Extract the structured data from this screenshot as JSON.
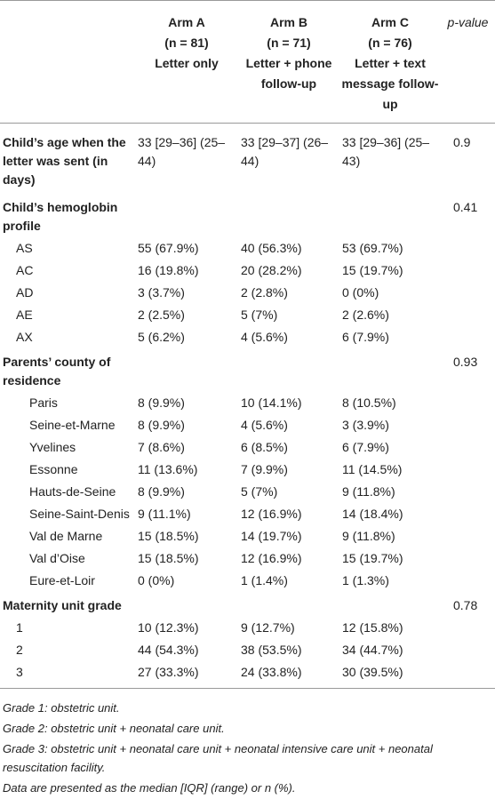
{
  "table": {
    "header": {
      "arms": [
        {
          "name": "Arm A",
          "n": "(n = 81)",
          "desc": "Letter only"
        },
        {
          "name": "Arm B",
          "n": "(n = 71)",
          "desc": "Letter + phone follow-up"
        },
        {
          "name": "Arm C",
          "n": "(n = 76)",
          "desc": "Letter + text message follow-up"
        }
      ],
      "p": "p-value"
    },
    "sections": [
      {
        "label": "Child’s age when the letter was sent (in days)",
        "cells": [
          "33 [29–36] (25–44)",
          "33 [29–37] (26–44)",
          "33 [29–36] (25–43)"
        ],
        "p": "0.9",
        "rows": []
      },
      {
        "label": "Child’s hemoglobin profile",
        "p": "0.41",
        "rows": [
          {
            "label": "AS",
            "cells": [
              "55 (67.9%)",
              "40 (56.3%)",
              "53 (69.7%)"
            ]
          },
          {
            "label": "AC",
            "cells": [
              "16 (19.8%)",
              "20 (28.2%)",
              "15 (19.7%)"
            ]
          },
          {
            "label": "AD",
            "cells": [
              "3 (3.7%)",
              "2 (2.8%)",
              "0 (0%)"
            ]
          },
          {
            "label": "AE",
            "cells": [
              "2 (2.5%)",
              "5 (7%)",
              "2 (2.6%)"
            ]
          },
          {
            "label": "AX",
            "cells": [
              "5 (6.2%)",
              "4 (5.6%)",
              "6 (7.9%)"
            ]
          }
        ]
      },
      {
        "label": "Parents’ county of residence",
        "p": "0.93",
        "rows": [
          {
            "label": "Paris",
            "cells": [
              "8 (9.9%)",
              "10 (14.1%)",
              "8 (10.5%)"
            ]
          },
          {
            "label": "Seine-et-Marne",
            "cells": [
              "8 (9.9%)",
              "4 (5.6%)",
              "3 (3.9%)"
            ]
          },
          {
            "label": "Yvelines",
            "cells": [
              "7 (8.6%)",
              "6 (8.5%)",
              "6 (7.9%)"
            ]
          },
          {
            "label": "Essonne",
            "cells": [
              "11 (13.6%)",
              "7 (9.9%)",
              "11 (14.5%)"
            ]
          },
          {
            "label": "Hauts-de-Seine",
            "cells": [
              "8 (9.9%)",
              "5 (7%)",
              "9 (11.8%)"
            ]
          },
          {
            "label": "Seine-Saint-Denis",
            "cells": [
              "9 (11.1%)",
              "12 (16.9%)",
              "14 (18.4%)"
            ]
          },
          {
            "label": "Val de Marne",
            "cells": [
              "15 (18.5%)",
              "14 (19.7%)",
              "9 (11.8%)"
            ]
          },
          {
            "label": "Val d’Oise",
            "cells": [
              "15 (18.5%)",
              "12 (16.9%)",
              "15 (19.7%)"
            ]
          },
          {
            "label": "Eure-et-Loir",
            "cells": [
              "0 (0%)",
              "1 (1.4%)",
              "1 (1.3%)"
            ]
          }
        ]
      },
      {
        "label": "Maternity unit grade",
        "p": "0.78",
        "rows": [
          {
            "label": "1",
            "cells": [
              "10 (12.3%)",
              "9 (12.7%)",
              "12 (15.8%)"
            ]
          },
          {
            "label": "2",
            "cells": [
              "44 (54.3%)",
              "38 (53.5%)",
              "34 (44.7%)"
            ]
          },
          {
            "label": "3",
            "cells": [
              "27 (33.3%)",
              "24 (33.8%)",
              "30 (39.5%)"
            ]
          }
        ]
      }
    ],
    "footnotes": [
      "Grade 1: obstetric unit.",
      "Grade 2: obstetric unit + neonatal care unit.",
      "Grade 3: obstetric unit + neonatal care unit + neonatal intensive care unit + neonatal resuscitation facility.",
      "Data are presented as the median [IQR] (range) or n (%)."
    ]
  }
}
